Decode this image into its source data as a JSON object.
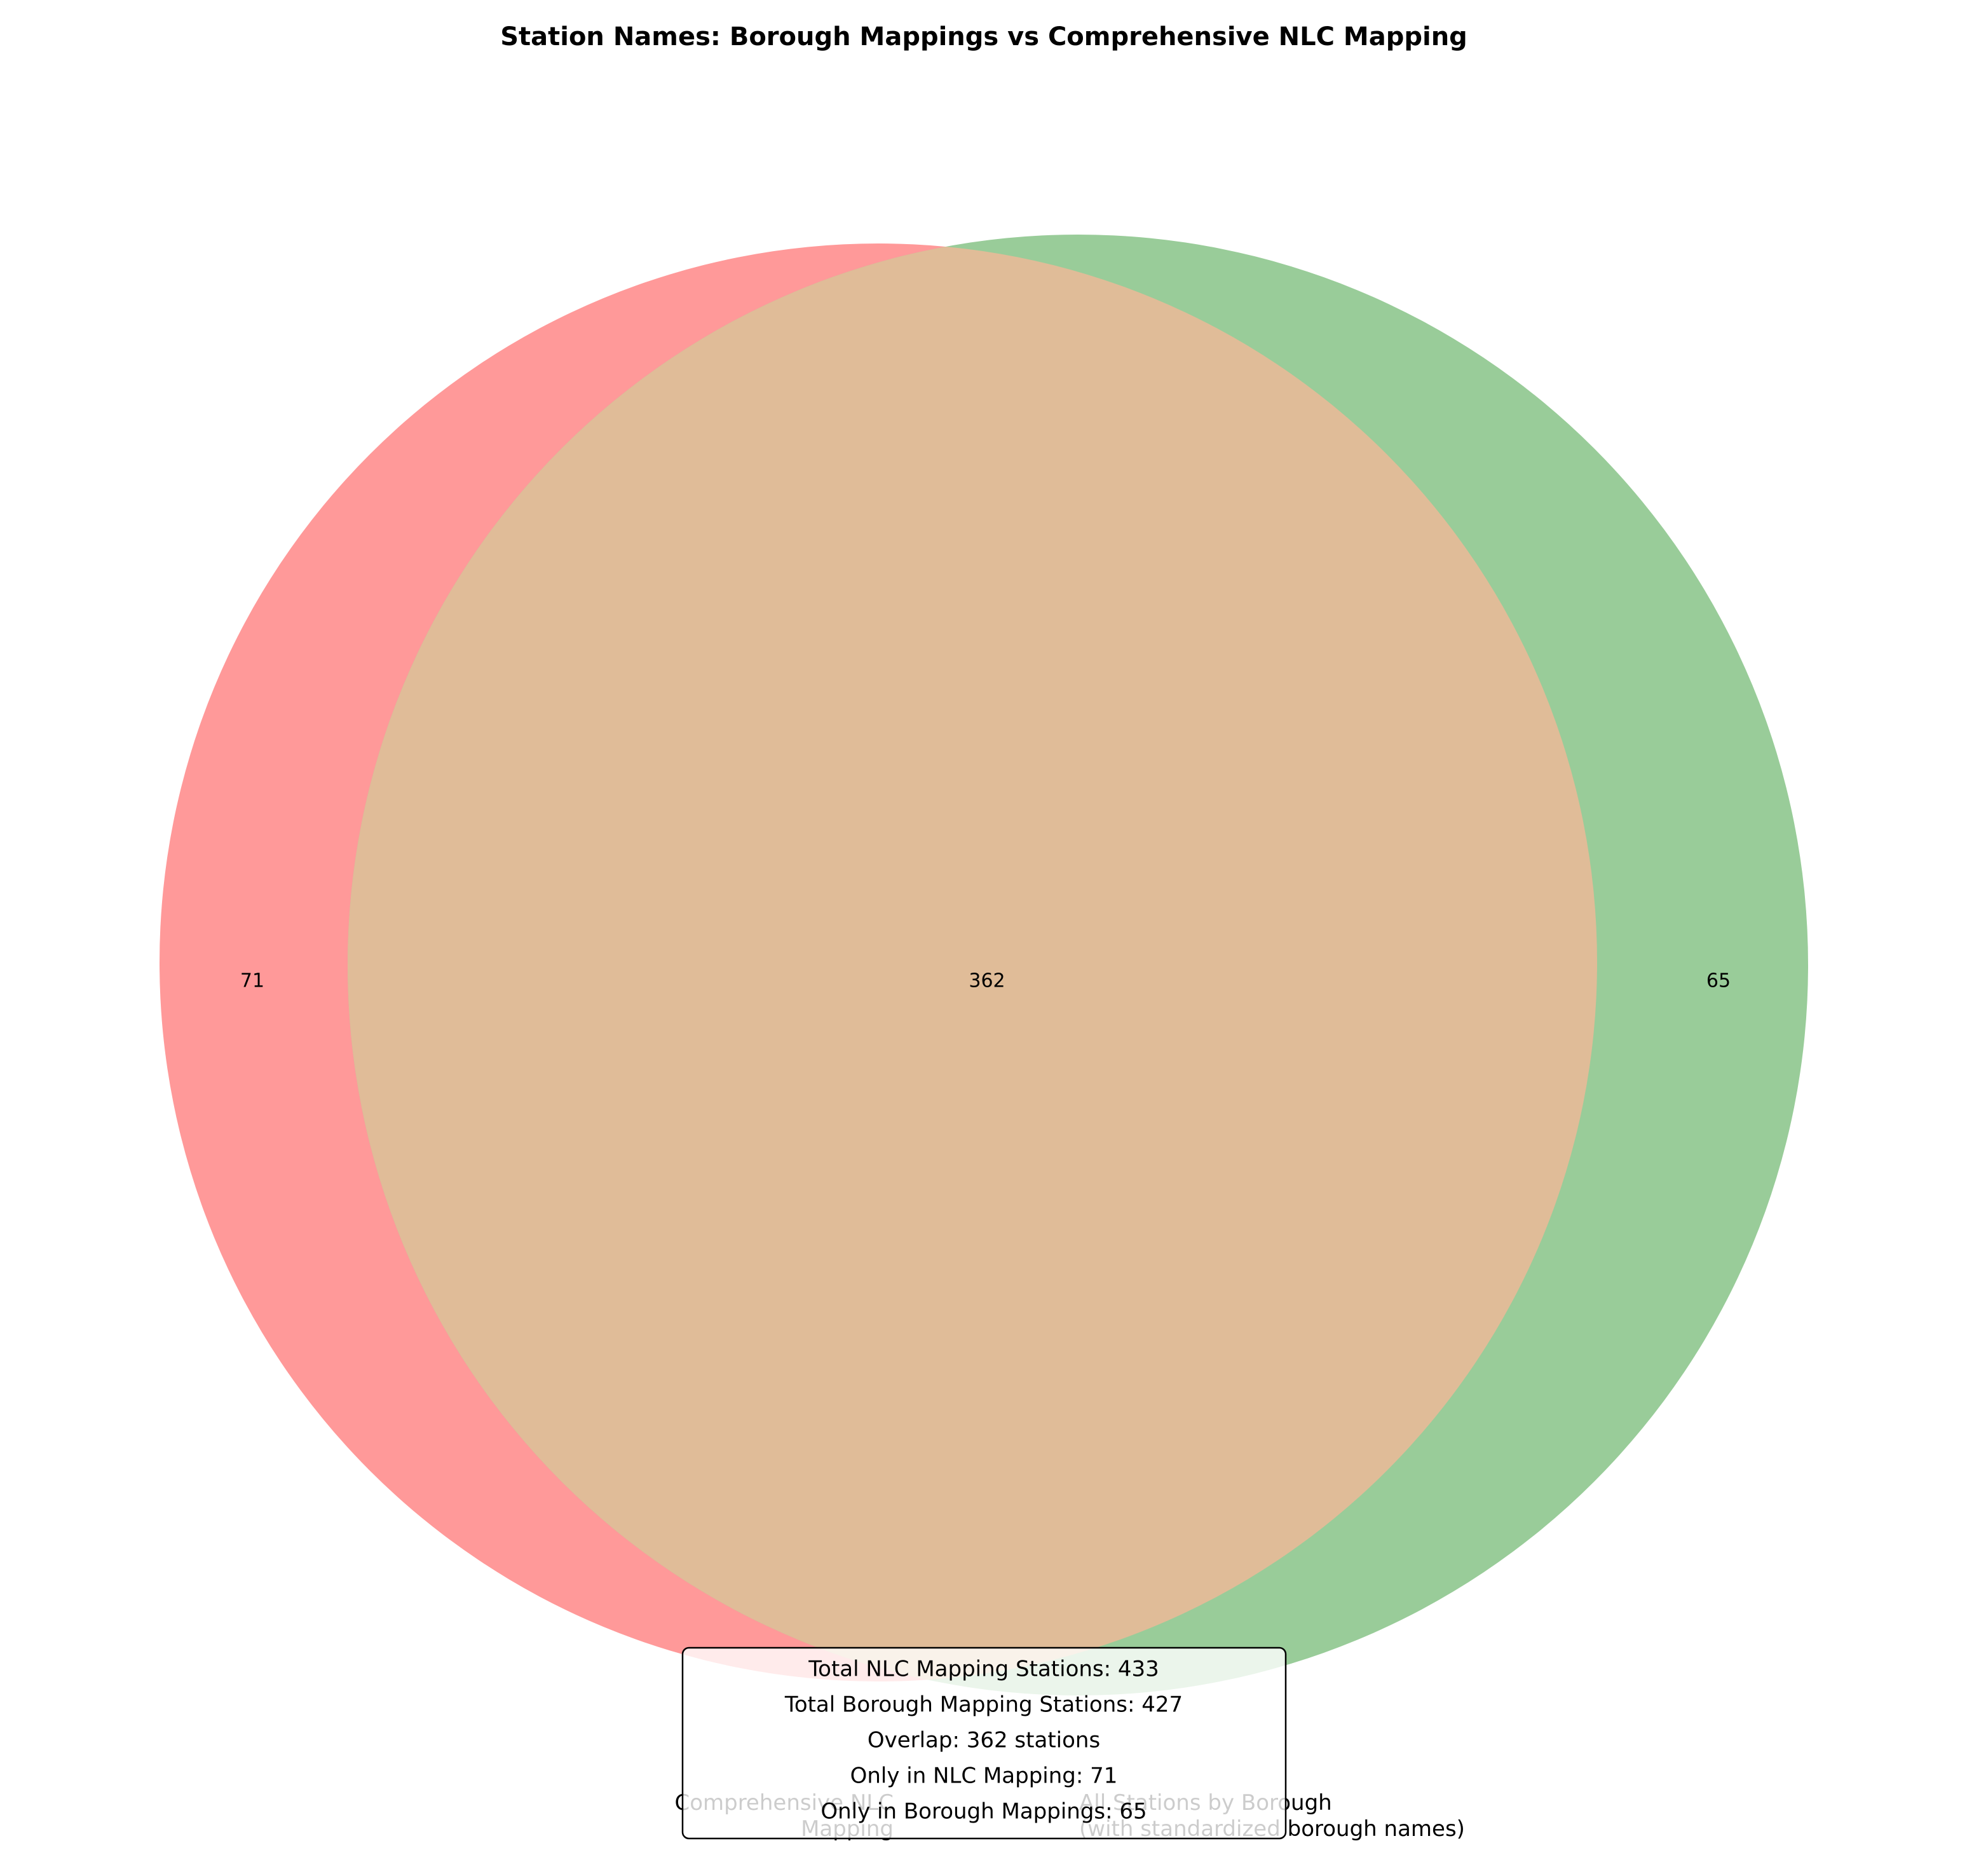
{
  "chart_data": {
    "type": "venn",
    "title": "Station Names: Borough Mappings vs Comprehensive NLC Mapping",
    "sets": [
      {
        "name": "Comprehensive NLC\nMapping",
        "color": "#ff9999"
      },
      {
        "name": "All Stations by Borough\n(with standardized borough names)",
        "color": "#99cc99"
      }
    ],
    "overlap_color": "#e0bc98",
    "subset_labels": [
      "71",
      "362",
      "65"
    ],
    "subsets": [
      71,
      362,
      65
    ],
    "annotation": [
      "Total NLC Mapping Stations: 433",
      "Total Borough Mapping Stations: 427",
      "Overlap: 362 stations",
      "Only in NLC Mapping: 71",
      "Only in Borough Mappings: 65"
    ]
  }
}
